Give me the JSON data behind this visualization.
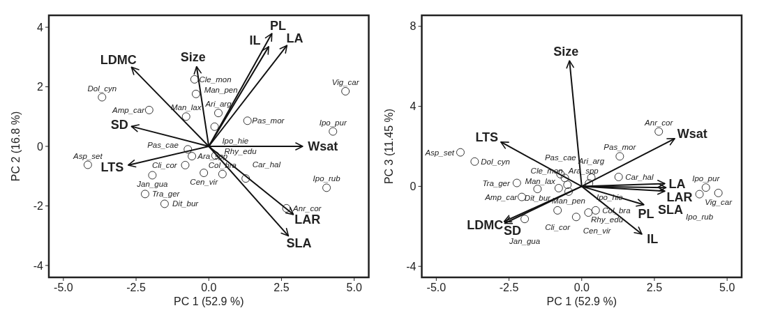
{
  "chart_data": [
    {
      "type": "scatter",
      "xlabel": "PC 1 (52.9 %)",
      "ylabel": "PC 2 (16.8 %)",
      "xlim": [
        -5.5,
        5.5
      ],
      "ylim": [
        -4.4,
        4.4
      ],
      "xticks": [
        {
          "value": -5,
          "label": "-5.0"
        },
        {
          "value": -2.5,
          "label": "-2.5"
        },
        {
          "value": 0,
          "label": "0.0"
        },
        {
          "value": 2.5,
          "label": "2.5"
        },
        {
          "value": 5,
          "label": "5.0"
        }
      ],
      "yticks": [
        -4,
        -2,
        0,
        2,
        4
      ],
      "grid": false,
      "marker": "circle",
      "series": [
        {
          "color": "#333333",
          "x": [
            -3.67,
            -2.05,
            -0.49,
            -0.44,
            -0.78,
            -0.72,
            -0.58,
            -0.81,
            -0.17,
            -4.16,
            -1.94,
            -2.19,
            -1.52,
            0.33,
            0.2,
            1.33,
            0.23,
            0.47,
            1.27,
            2.67,
            4.7,
            4.27,
            4.05
          ],
          "values": [
            1.65,
            1.22,
            2.25,
            1.76,
            1.0,
            -0.1,
            -0.33,
            -0.63,
            -0.89,
            -0.62,
            -0.97,
            -1.6,
            -1.93,
            1.12,
            0.66,
            0.86,
            -0.31,
            -0.93,
            -1.08,
            -2.08,
            1.85,
            0.5,
            -1.39
          ],
          "value_labels": [
            "Dol_cyn",
            "Amp_car",
            "Cle_mon",
            "Man_pen",
            "Man_lax",
            "Pas_cae",
            "Ara_spp",
            "Cli_cor",
            "Cen_vir",
            "Asp_set",
            "Jan_gua",
            "Tra_ger",
            "Dit_bur",
            "Ari_arg",
            "Ipo_hie",
            "Pas_mor",
            "Rhy_edu",
            "Col_bra",
            "Car_hal",
            "Anr_cor",
            "Vig_car",
            "Ipo_pur",
            "Ipo_rub"
          ]
        },
        {
          "type": "line",
          "name": "LDMC",
          "color": "#111111",
          "marker": "none",
          "x": [
            0,
            -2.66
          ],
          "values": [
            0,
            2.66
          ]
        },
        {
          "type": "line",
          "name": "Size",
          "color": "#111111",
          "marker": "none",
          "x": [
            0,
            -0.42
          ],
          "values": [
            0,
            2.68
          ]
        },
        {
          "type": "line",
          "name": "SD",
          "color": "#111111",
          "marker": "none",
          "x": [
            0,
            -2.66
          ],
          "values": [
            0,
            0.67
          ]
        },
        {
          "type": "line",
          "name": "LTS",
          "color": "#111111",
          "marker": "none",
          "x": [
            0,
            -2.77
          ],
          "values": [
            0,
            -0.63
          ]
        },
        {
          "type": "line",
          "name": "PL",
          "color": "#111111",
          "marker": "none",
          "x": [
            0,
            2.17
          ],
          "values": [
            0,
            3.79
          ]
        },
        {
          "type": "line",
          "name": "IL",
          "color": "#111111",
          "marker": "none",
          "x": [
            0,
            2.06
          ],
          "values": [
            0,
            3.35
          ]
        },
        {
          "type": "line",
          "name": "LA",
          "color": "#111111",
          "marker": "none",
          "x": [
            0,
            2.69
          ],
          "values": [
            0,
            3.39
          ]
        },
        {
          "type": "line",
          "name": "Wsat",
          "color": "#111111",
          "marker": "none",
          "x": [
            0,
            3.23
          ],
          "values": [
            0,
            0
          ]
        },
        {
          "type": "line",
          "name": "LAR",
          "color": "#111111",
          "marker": "none",
          "x": [
            0,
            2.91
          ],
          "values": [
            0,
            -2.29
          ]
        },
        {
          "type": "line",
          "name": "SLA",
          "color": "#111111",
          "marker": "none",
          "x": [
            0,
            2.74
          ],
          "values": [
            0,
            -3.01
          ]
        }
      ]
    },
    {
      "type": "scatter",
      "xlabel": "PC 1 (52.9 %)",
      "ylabel": "PC 3 (11.45 %)",
      "xlim": [
        -5.5,
        5.5
      ],
      "ylim": [
        -4.55,
        8.55
      ],
      "xticks": [
        {
          "value": -5,
          "label": "-5.0"
        },
        {
          "value": -2.5,
          "label": "-2.5"
        },
        {
          "value": 0,
          "label": "0.0"
        },
        {
          "value": 2.5,
          "label": "2.5"
        },
        {
          "value": 5,
          "label": "5.0"
        }
      ],
      "yticks": [
        -4,
        0,
        4,
        8
      ],
      "grid": false,
      "marker": "circle",
      "series": [
        {
          "color": "#333333",
          "x": [
            -3.68,
            -2.06,
            -0.49,
            -0.45,
            -0.79,
            -0.73,
            -0.58,
            -0.83,
            -0.19,
            -4.17,
            -1.96,
            -2.23,
            -1.52,
            0.33,
            0.25,
            1.31,
            0.23,
            0.48,
            1.27,
            2.65,
            4.7,
            4.27,
            4.05
          ],
          "values": [
            1.24,
            -0.53,
            0.08,
            -0.26,
            -0.09,
            0.61,
            0.42,
            -1.2,
            -1.53,
            1.7,
            -1.63,
            0.17,
            -0.13,
            0.44,
            0.15,
            1.5,
            -1.31,
            -1.2,
            0.47,
            2.74,
            -0.33,
            -0.06,
            -0.39
          ],
          "value_labels": [
            "Dol_cyn",
            "Amp_car",
            "Cle_mon",
            "Man_pen",
            "Man_lax",
            "Pas_cae",
            "Ara_spp",
            "Cli_cor",
            "Cen_vir",
            "Asp_set",
            "Jan_gua",
            "Tra_ger",
            "Dit_bur",
            "Ari_arg",
            "Ipo_hie",
            "Pas_mor",
            "Rhy_edu",
            "Col_bra",
            "Car_hal",
            "Anr_cor",
            "Vig_car",
            "Ipo_pur",
            "Ipo_rub"
          ]
        },
        {
          "type": "line",
          "name": "Size",
          "color": "#111111",
          "marker": "none",
          "x": [
            0,
            -0.42
          ],
          "values": [
            0,
            6.28
          ]
        },
        {
          "type": "line",
          "name": "LTS",
          "color": "#111111",
          "marker": "none",
          "x": [
            0,
            -2.78
          ],
          "values": [
            0,
            2.22
          ]
        },
        {
          "type": "line",
          "name": "LDMC",
          "color": "#111111",
          "marker": "none",
          "x": [
            0,
            -2.67
          ],
          "values": [
            0,
            -1.76
          ]
        },
        {
          "type": "line",
          "name": "SD",
          "color": "#111111",
          "marker": "none",
          "x": [
            0,
            -2.65
          ],
          "values": [
            0,
            -1.85
          ]
        },
        {
          "type": "line",
          "name": "Wsat",
          "color": "#111111",
          "marker": "none",
          "x": [
            0,
            3.2
          ],
          "values": [
            0,
            2.39
          ]
        },
        {
          "type": "line",
          "name": "LA",
          "color": "#111111",
          "marker": "none",
          "x": [
            0,
            2.86
          ],
          "values": [
            0,
            0.14
          ]
        },
        {
          "type": "line",
          "name": "LAR",
          "color": "#111111",
          "marker": "none",
          "x": [
            0,
            2.9
          ],
          "values": [
            0,
            -0.06
          ]
        },
        {
          "type": "line",
          "name": "SLA",
          "color": "#111111",
          "marker": "none",
          "x": [
            0,
            2.86
          ],
          "values": [
            0,
            -0.24
          ]
        },
        {
          "type": "line",
          "name": "PL",
          "color": "#111111",
          "marker": "none",
          "x": [
            0,
            2.14
          ],
          "values": [
            0,
            -0.92
          ]
        },
        {
          "type": "line",
          "name": "IL",
          "color": "#111111",
          "marker": "none",
          "x": [
            0,
            2.07
          ],
          "values": [
            0,
            -2.39
          ]
        }
      ]
    }
  ]
}
